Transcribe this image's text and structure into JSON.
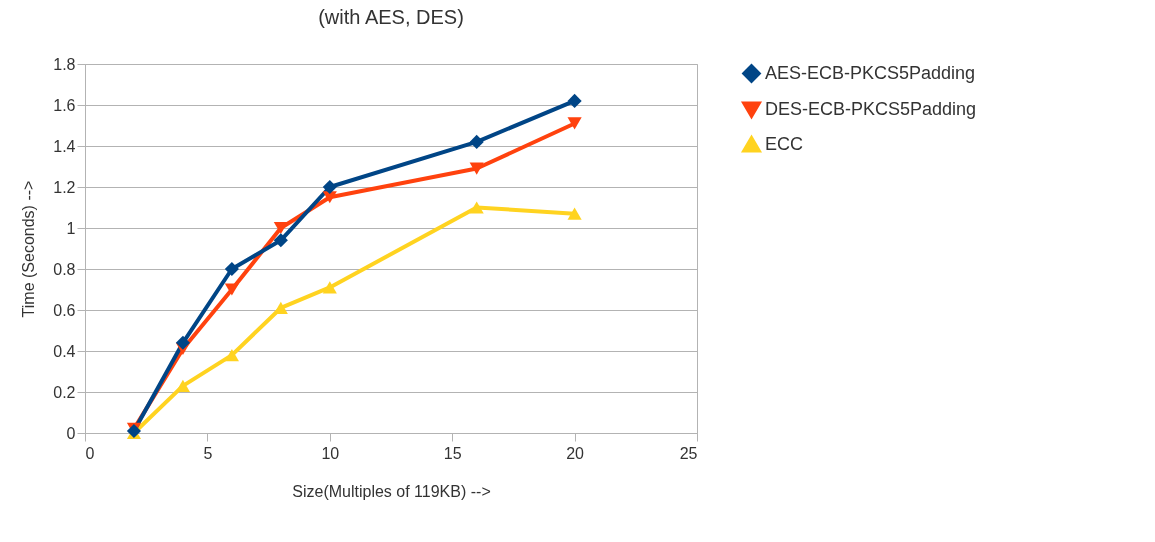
{
  "chart_data": {
    "type": "line",
    "title": "(with AES, DES)",
    "xlabel": "Size(Multiples of 119KB) -->",
    "ylabel": "Time (Seconds) -->",
    "x": [
      2,
      4,
      6,
      8,
      10,
      16,
      20
    ],
    "series": [
      {
        "name": "AES-ECB-PKCS5Padding",
        "color": "#004586",
        "marker": "diamond",
        "values": [
          0.01,
          0.44,
          0.8,
          0.94,
          1.2,
          1.42,
          1.62
        ]
      },
      {
        "name": "DES-ECB-PKCS5Padding",
        "color": "#ff420e",
        "marker": "triangle-down",
        "values": [
          0.02,
          0.41,
          0.7,
          1.0,
          1.15,
          1.29,
          1.51
        ]
      },
      {
        "name": "ECC",
        "color": "#ffd320",
        "marker": "triangle-up",
        "values": [
          0,
          0.23,
          0.38,
          0.61,
          0.71,
          1.1,
          1.07
        ]
      }
    ],
    "xlim": [
      0,
      25
    ],
    "xticks": [
      0,
      5,
      10,
      15,
      20,
      25
    ],
    "ylim": [
      0,
      1.8
    ],
    "yticks": [
      0,
      0.2,
      0.4,
      0.6,
      0.8,
      1,
      1.2,
      1.4,
      1.6,
      1.8
    ],
    "grid": "y",
    "legend": "right",
    "line_style": "solid"
  }
}
